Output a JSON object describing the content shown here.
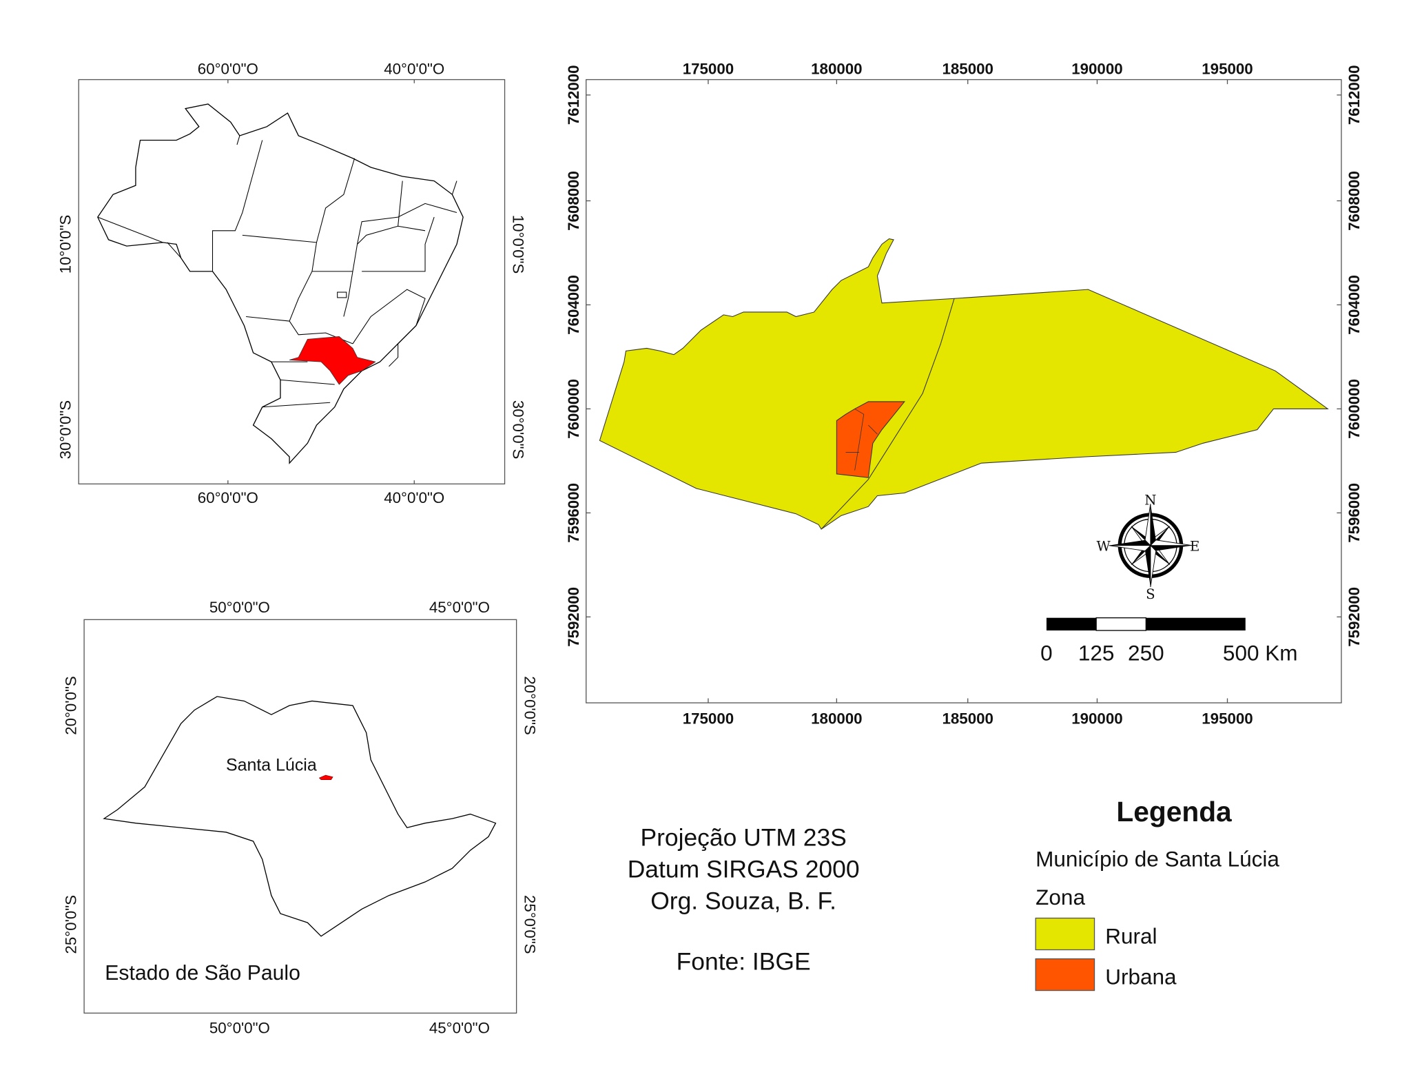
{
  "brazil_map": {
    "top_labels": [
      "60°0'0\"O",
      "40°0'0\"O"
    ],
    "bottom_labels": [
      "60°0'0\"O",
      "40°0'0\"O"
    ],
    "left_labels": [
      "10°0'0\"S",
      "30°0'0\"S"
    ],
    "right_labels": [
      "10°0'0\"S",
      "30°0'0\"S"
    ],
    "highlight_color": "#ff0000"
  },
  "sp_map": {
    "top_labels": [
      "50°0'0\"O",
      "45°0'0\"O"
    ],
    "bottom_labels": [
      "50°0'0\"O",
      "45°0'0\"O"
    ],
    "left_labels": [
      "20°0'0\"S",
      "25°0'0\"S"
    ],
    "right_labels": [
      "20°0'0\"S",
      "25°0'0\"S"
    ],
    "place_label": "Santa Lúcia",
    "title": "Estado de São Paulo"
  },
  "main_map": {
    "x_labels": [
      "175000",
      "180000",
      "185000",
      "190000",
      "195000"
    ],
    "y_labels": [
      "7612000",
      "7608000",
      "7604000",
      "7600000",
      "7596000",
      "7592000"
    ],
    "compass": {
      "n": "N",
      "s": "S",
      "e": "E",
      "w": "W"
    },
    "scale_bar": {
      "labels": [
        "0",
        "125",
        "250",
        "500 Km"
      ]
    }
  },
  "info": {
    "projection": "Projeção UTM 23S",
    "datum": "Datum SIRGAS 2000",
    "org": "Org. Souza, B. F.",
    "source": "Fonte: IBGE"
  },
  "legend": {
    "title": "Legenda",
    "subtitle": "Município de Santa Lúcia",
    "group": "Zona",
    "items": [
      {
        "label": "Rural",
        "color": "#e5e600"
      },
      {
        "label": "Urbana",
        "color": "#ff5500"
      }
    ]
  }
}
